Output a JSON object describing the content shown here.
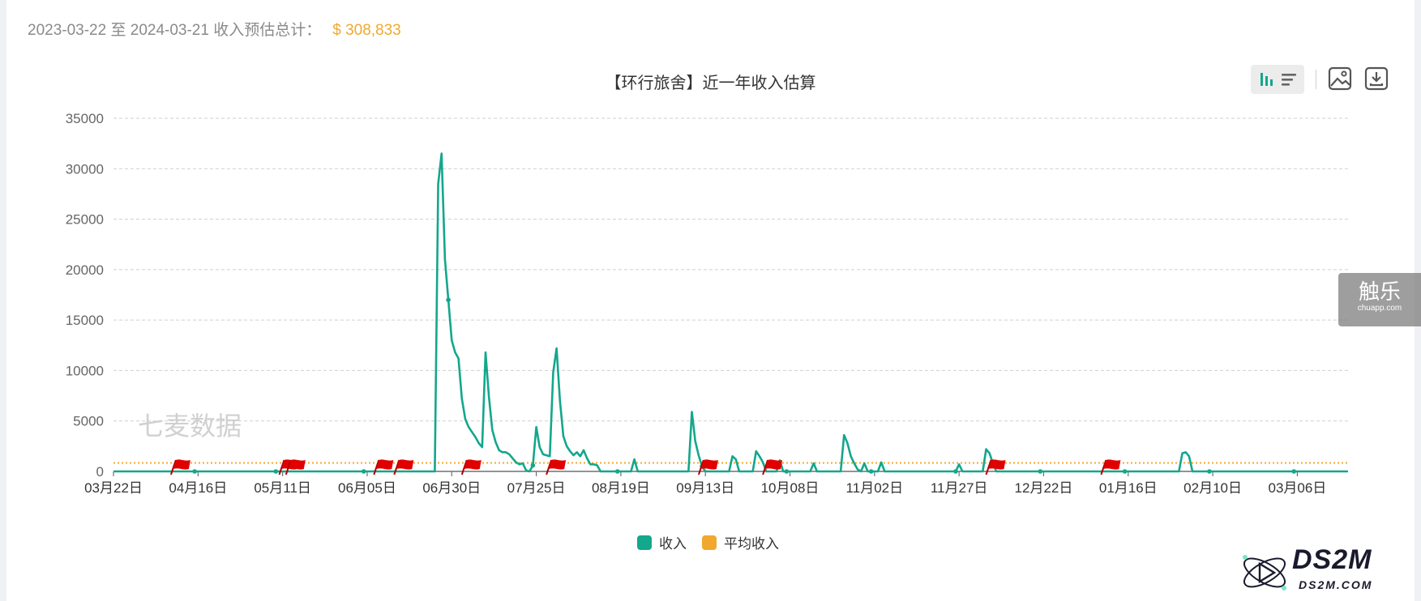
{
  "summary": {
    "label": "2023-03-22 至 2024-03-21 收入预估总计：",
    "value": "$ 308,833"
  },
  "toolbar": {
    "bar_icon": "bar-chart-icon",
    "list_icon": "list-icon",
    "image_icon": "save-image-icon",
    "download_icon": "download-icon"
  },
  "watermarks": {
    "qimai": "七麦数据",
    "chuapp_big": "触乐",
    "chuapp_small": "chuapp.com",
    "ds2m_big": "DS2M",
    "ds2m_small": "DS2M.COM"
  },
  "colors": {
    "income": "#13a78c",
    "average": "#f0a92e",
    "flag": "#e00000"
  },
  "chart_data": {
    "type": "line",
    "title": "【环行旅舍】近一年收入估算",
    "xlabel": "",
    "ylabel": "",
    "ylim": [
      0,
      35000
    ],
    "yticks": [
      0,
      5000,
      10000,
      15000,
      20000,
      25000,
      30000,
      35000
    ],
    "x_start": "2023-03-22",
    "x_end": "2024-03-21",
    "xtick_labels": [
      "03月22日",
      "04月16日",
      "05月11日",
      "06月05日",
      "06月30日",
      "07月25日",
      "08月19日",
      "09月13日",
      "10月08日",
      "11月02日",
      "11月27日",
      "12月22日",
      "01月16日",
      "02月10日",
      "03月06日"
    ],
    "grid": true,
    "legend_position": "bottom-center",
    "series": [
      {
        "name": "收入",
        "color": "#13a78c",
        "points": [
          [
            "2023-03-22",
            0
          ],
          [
            "2023-06-25",
            0
          ],
          [
            "2023-06-26",
            28500
          ],
          [
            "2023-06-27",
            31500
          ],
          [
            "2023-06-28",
            21000
          ],
          [
            "2023-06-29",
            17000
          ],
          [
            "2023-06-30",
            13000
          ],
          [
            "2023-07-01",
            11800
          ],
          [
            "2023-07-02",
            11200
          ],
          [
            "2023-07-03",
            7200
          ],
          [
            "2023-07-04",
            5200
          ],
          [
            "2023-07-05",
            4400
          ],
          [
            "2023-07-06",
            3900
          ],
          [
            "2023-07-07",
            3400
          ],
          [
            "2023-07-08",
            2800
          ],
          [
            "2023-07-09",
            2400
          ],
          [
            "2023-07-10",
            11800
          ],
          [
            "2023-07-11",
            7400
          ],
          [
            "2023-07-12",
            4100
          ],
          [
            "2023-07-13",
            2900
          ],
          [
            "2023-07-14",
            2100
          ],
          [
            "2023-07-15",
            1900
          ],
          [
            "2023-07-16",
            1900
          ],
          [
            "2023-07-17",
            1700
          ],
          [
            "2023-07-18",
            1300
          ],
          [
            "2023-07-19",
            900
          ],
          [
            "2023-07-20",
            700
          ],
          [
            "2023-07-21",
            800
          ],
          [
            "2023-07-22",
            100
          ],
          [
            "2023-07-23",
            0
          ],
          [
            "2023-07-24",
            600
          ],
          [
            "2023-07-25",
            4400
          ],
          [
            "2023-07-26",
            2400
          ],
          [
            "2023-07-27",
            1700
          ],
          [
            "2023-07-28",
            1600
          ],
          [
            "2023-07-29",
            1500
          ],
          [
            "2023-07-30",
            9800
          ],
          [
            "2023-07-31",
            12200
          ],
          [
            "2023-08-01",
            7000
          ],
          [
            "2023-08-02",
            3500
          ],
          [
            "2023-08-03",
            2500
          ],
          [
            "2023-08-04",
            2000
          ],
          [
            "2023-08-05",
            1600
          ],
          [
            "2023-08-06",
            1900
          ],
          [
            "2023-08-07",
            1500
          ],
          [
            "2023-08-08",
            2100
          ],
          [
            "2023-08-09",
            1300
          ],
          [
            "2023-08-10",
            700
          ],
          [
            "2023-08-11",
            700
          ],
          [
            "2023-08-12",
            600
          ],
          [
            "2023-08-13",
            0
          ],
          [
            "2023-08-22",
            0
          ],
          [
            "2023-08-23",
            1200
          ],
          [
            "2023-08-24",
            0
          ],
          [
            "2023-09-08",
            0
          ],
          [
            "2023-09-09",
            5900
          ],
          [
            "2023-09-10",
            3000
          ],
          [
            "2023-09-11",
            1600
          ],
          [
            "2023-09-12",
            500
          ],
          [
            "2023-09-13",
            0
          ],
          [
            "2023-09-20",
            0
          ],
          [
            "2023-09-21",
            1500
          ],
          [
            "2023-09-22",
            1200
          ],
          [
            "2023-09-23",
            0
          ],
          [
            "2023-09-27",
            0
          ],
          [
            "2023-09-28",
            2000
          ],
          [
            "2023-09-29",
            1500
          ],
          [
            "2023-09-30",
            900
          ],
          [
            "2023-10-01",
            0
          ],
          [
            "2023-10-04",
            0
          ],
          [
            "2023-10-05",
            1100
          ],
          [
            "2023-10-06",
            0
          ],
          [
            "2023-10-14",
            0
          ],
          [
            "2023-10-15",
            800
          ],
          [
            "2023-10-16",
            0
          ],
          [
            "2023-10-23",
            0
          ],
          [
            "2023-10-24",
            3600
          ],
          [
            "2023-10-25",
            2800
          ],
          [
            "2023-10-26",
            1500
          ],
          [
            "2023-10-27",
            800
          ],
          [
            "2023-10-28",
            200
          ],
          [
            "2023-10-29",
            0
          ],
          [
            "2023-10-30",
            800
          ],
          [
            "2023-10-31",
            0
          ],
          [
            "2023-11-03",
            0
          ],
          [
            "2023-11-04",
            900
          ],
          [
            "2023-11-05",
            0
          ],
          [
            "2023-11-26",
            0
          ],
          [
            "2023-11-27",
            700
          ],
          [
            "2023-11-28",
            0
          ],
          [
            "2023-12-04",
            0
          ],
          [
            "2023-12-05",
            2200
          ],
          [
            "2023-12-06",
            1800
          ],
          [
            "2023-12-07",
            800
          ],
          [
            "2023-12-08",
            0
          ],
          [
            "2024-01-31",
            0
          ],
          [
            "2024-02-01",
            1800
          ],
          [
            "2024-02-02",
            1900
          ],
          [
            "2024-02-03",
            1500
          ],
          [
            "2024-02-04",
            0
          ],
          [
            "2024-03-21",
            0
          ]
        ],
        "markers": [
          "2023-04-15",
          "2023-05-09",
          "2023-06-04",
          "2023-06-29",
          "2023-07-24",
          "2023-08-18",
          "2023-09-12",
          "2023-10-07",
          "2023-11-01",
          "2023-11-26",
          "2023-12-21",
          "2024-01-15",
          "2024-02-09",
          "2024-03-05"
        ]
      },
      {
        "name": "平均收入",
        "color": "#f0a92e",
        "style": "dotted",
        "value": 844
      }
    ],
    "flags": [
      "2023-04-08",
      "2023-05-10",
      "2023-05-12",
      "2023-06-07",
      "2023-06-13",
      "2023-07-03",
      "2023-07-28",
      "2023-09-11",
      "2023-09-30",
      "2023-12-05",
      "2024-01-08"
    ]
  },
  "legend": {
    "items": [
      {
        "label": "收入",
        "color": "#13a78c"
      },
      {
        "label": "平均收入",
        "color": "#f0a92e"
      }
    ]
  }
}
